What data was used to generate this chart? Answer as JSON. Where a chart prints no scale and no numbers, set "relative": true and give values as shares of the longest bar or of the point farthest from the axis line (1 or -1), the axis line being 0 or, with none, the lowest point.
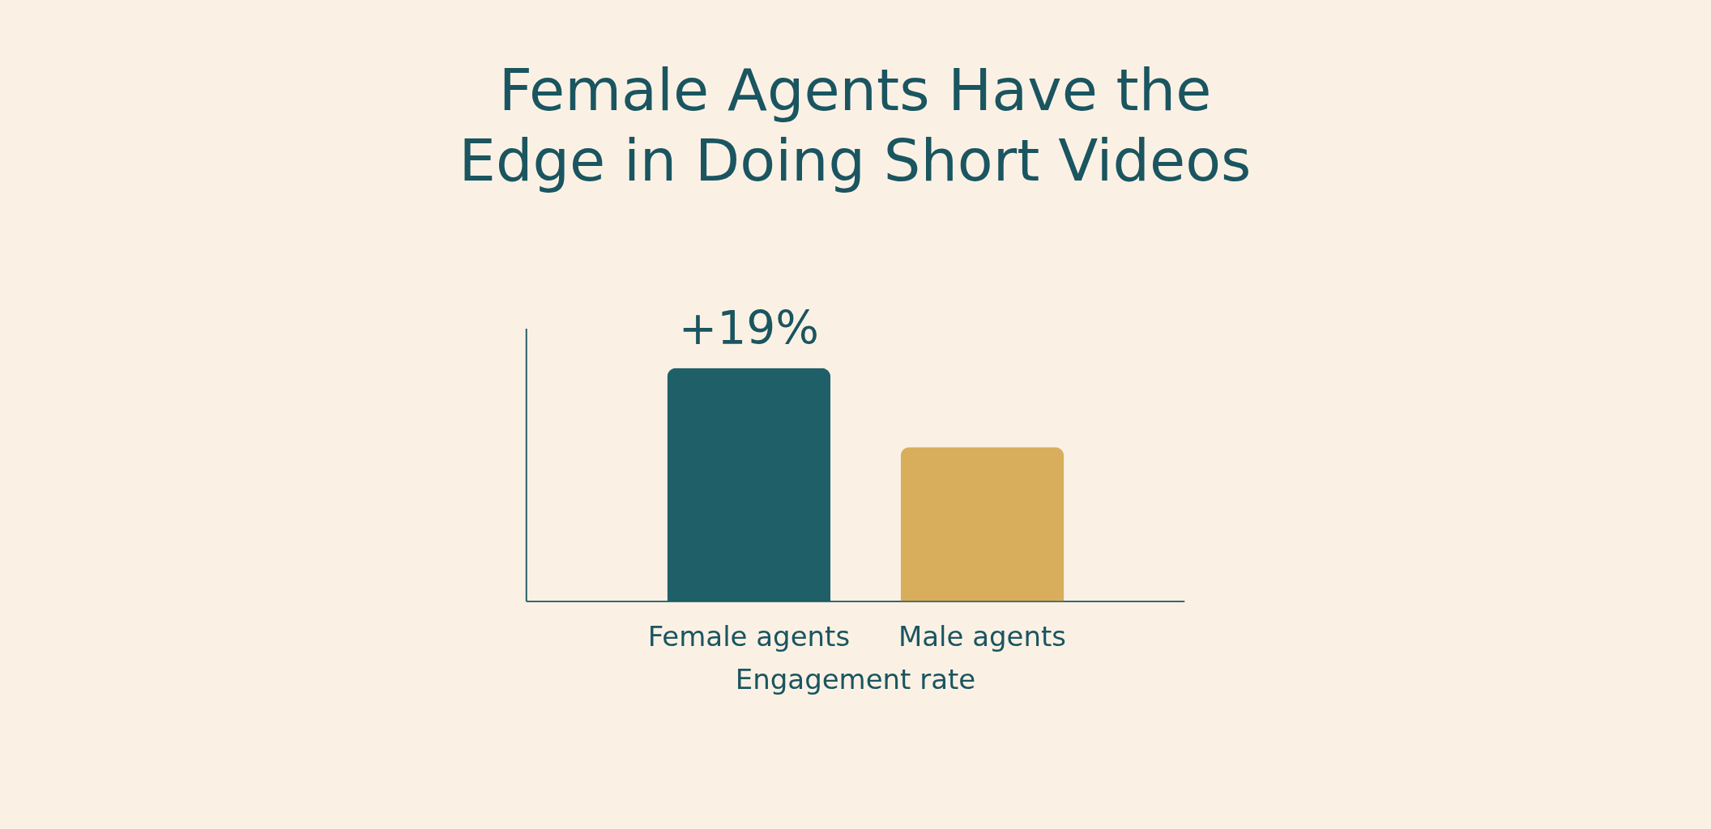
{
  "chart_data": {
    "type": "bar",
    "title": [
      "Female Agents Have the",
      "Edge in Doing Short Videos"
    ],
    "xlabel": "Engagement rate",
    "categories": [
      "Female agents",
      "Male agents"
    ],
    "values": [
      1,
      0.66
    ],
    "colors": [
      "#1f6068",
      "#d8ae5c"
    ],
    "relative": true,
    "annotations": [
      {
        "text": "+19%",
        "x": "Female agents",
        "y": 1
      }
    ],
    "grid": false,
    "legend": false
  }
}
